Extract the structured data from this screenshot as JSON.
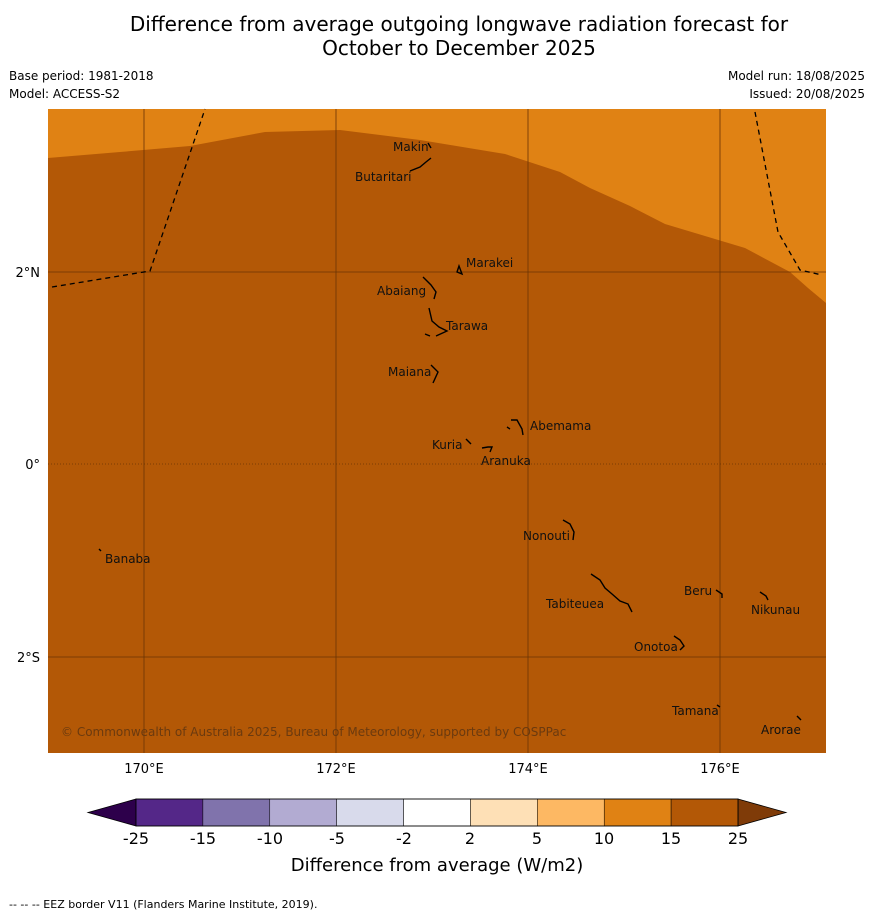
{
  "title": {
    "line1": "Difference from average outgoing longwave radiation forecast for",
    "line2": "October to December 2025"
  },
  "meta_left": {
    "base_period": "Base period: 1981-2018",
    "model": "Model: ACCESS-S2"
  },
  "meta_right": {
    "model_run": "Model run: 18/08/2025",
    "issued": "Issued: 20/08/2025"
  },
  "map": {
    "lon_range": [
      169.0,
      177.1
    ],
    "lat_range": [
      -3.0,
      3.7
    ],
    "lon_ticks": [
      {
        "value": 170,
        "label": "170°E"
      },
      {
        "value": 172,
        "label": "172°E"
      },
      {
        "value": 174,
        "label": "174°E"
      },
      {
        "value": 176,
        "label": "176°E"
      }
    ],
    "lat_ticks": [
      {
        "value": 2,
        "label": "2°N"
      },
      {
        "value": 0,
        "label": "0°"
      },
      {
        "value": -2,
        "label": "2°S"
      }
    ],
    "fill_colors": {
      "band_10_15": "#e08214",
      "band_15_25": "#b35806"
    },
    "islands": [
      {
        "name": "Makin",
        "lon": 172.95,
        "lat": 3.25
      },
      {
        "name": "Butaritari",
        "lon": 172.85,
        "lat": 3.05
      },
      {
        "name": "Marakei",
        "lon": 173.3,
        "lat": 2.0
      },
      {
        "name": "Abaiang",
        "lon": 172.98,
        "lat": 1.8
      },
      {
        "name": "Tarawa",
        "lon": 173.05,
        "lat": 1.45
      },
      {
        "name": "Maiana",
        "lon": 173.0,
        "lat": 0.95
      },
      {
        "name": "Abemama",
        "lon": 173.9,
        "lat": 0.4
      },
      {
        "name": "Kuria",
        "lon": 173.4,
        "lat": 0.22
      },
      {
        "name": "Aranuka",
        "lon": 173.6,
        "lat": 0.17
      },
      {
        "name": "Nonouti",
        "lon": 174.4,
        "lat": -0.7
      },
      {
        "name": "Banaba",
        "lon": 169.55,
        "lat": -0.87
      },
      {
        "name": "Tabiteuea",
        "lon": 174.8,
        "lat": -1.3
      },
      {
        "name": "Beru",
        "lon": 175.98,
        "lat": -1.3
      },
      {
        "name": "Nikunau",
        "lon": 176.45,
        "lat": -1.33
      },
      {
        "name": "Onotoa",
        "lon": 175.55,
        "lat": -1.8
      },
      {
        "name": "Tamana",
        "lon": 175.97,
        "lat": -2.5
      },
      {
        "name": "Arorae",
        "lon": 176.82,
        "lat": -2.64
      }
    ],
    "copyright": "© Commonwealth of Australia 2025, Bureau of Meteorology, supported by COSPPac"
  },
  "colorbar": {
    "label": "Difference from average (W/m2)",
    "ticks": [
      "-25",
      "-15",
      "-10",
      "-5",
      "-2",
      "2",
      "5",
      "10",
      "15",
      "25"
    ],
    "colors": [
      "#542788",
      "#8073ac",
      "#b2abd2",
      "#d8daeb",
      "#ffffff",
      "#fee0b6",
      "#fdb863",
      "#e08214",
      "#b35806"
    ],
    "under_color": "#2d004b",
    "over_color": "#7f3b08"
  },
  "footer": "--  --  -- EEZ border V11 (Flanders Marine Institute, 2019)."
}
